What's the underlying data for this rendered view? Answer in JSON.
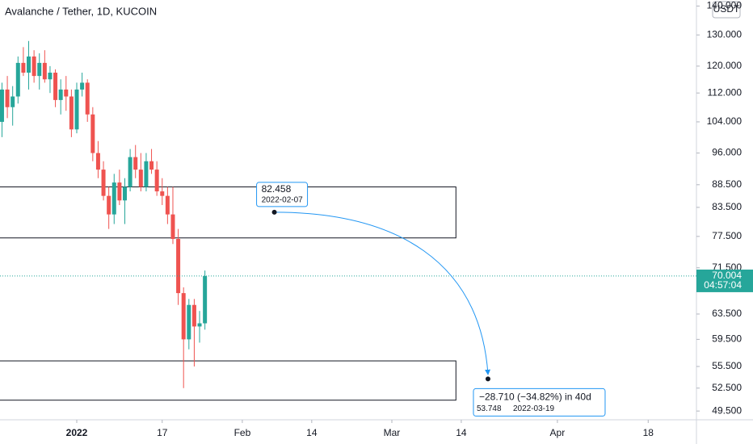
{
  "chart_data": {
    "type": "candlestick",
    "title": "Avalanche / Tether, 1D, KUCOIN",
    "currency": "USDT",
    "log_scale": true,
    "up_color": "#26a69a",
    "down_color": "#ef5350",
    "x": [
      "2021-12-18",
      "2021-12-19",
      "2021-12-20",
      "2021-12-21",
      "2021-12-22",
      "2021-12-23",
      "2021-12-24",
      "2021-12-25",
      "2021-12-26",
      "2021-12-27",
      "2021-12-28",
      "2021-12-29",
      "2021-12-30",
      "2021-12-31",
      "2022-01-01",
      "2022-01-02",
      "2022-01-03",
      "2022-01-04",
      "2022-01-05",
      "2022-01-06",
      "2022-01-07",
      "2022-01-08",
      "2022-01-09",
      "2022-01-10",
      "2022-01-11",
      "2022-01-12",
      "2022-01-13",
      "2022-01-14",
      "2022-01-15",
      "2022-01-16",
      "2022-01-17",
      "2022-01-18",
      "2022-01-19",
      "2022-01-20",
      "2022-01-21",
      "2022-01-22",
      "2022-01-23",
      "2022-01-24",
      "2022-01-25"
    ],
    "open": [
      104,
      113,
      108,
      111,
      121,
      118,
      123,
      117,
      121,
      116,
      118,
      110,
      113,
      111,
      102,
      113,
      115,
      106,
      96,
      92,
      86,
      82,
      89,
      85,
      88,
      95,
      92,
      88,
      94,
      92,
      87,
      86,
      82,
      77,
      67,
      59.5,
      65,
      61.5,
      62
    ],
    "high": [
      115,
      117,
      114,
      123,
      126,
      128,
      125,
      124,
      125,
      120,
      119,
      116,
      117,
      113,
      115,
      118,
      116,
      108,
      99,
      94,
      88,
      91,
      92,
      90,
      97,
      98,
      96,
      96,
      97,
      94,
      90,
      88,
      88,
      79,
      68,
      66,
      66,
      64,
      71
    ],
    "low": [
      100,
      105,
      103,
      109,
      117,
      113,
      115,
      113,
      115,
      112,
      108,
      106,
      107,
      100,
      101,
      111,
      104,
      94,
      90,
      85,
      79,
      80,
      84,
      80,
      87,
      90,
      87,
      87,
      91,
      86,
      84,
      80,
      76,
      65,
      52.5,
      58,
      55.5,
      59,
      61
    ],
    "close": [
      113,
      108,
      111,
      121,
      118,
      123,
      117,
      121,
      116,
      118,
      110,
      113,
      111,
      102,
      113,
      115,
      106,
      96,
      92,
      86,
      82,
      89,
      85,
      88,
      95,
      92,
      88,
      94,
      92,
      87,
      86,
      82,
      77,
      67,
      59.5,
      65,
      61.5,
      62,
      70.004
    ],
    "countdown": "04:57:04",
    "ylim": [
      48.4,
      142.2
    ],
    "yticks": [
      {
        "value": 140,
        "label": "140.000"
      },
      {
        "value": 130,
        "label": "130.000"
      },
      {
        "value": 120,
        "label": "120.000"
      },
      {
        "value": 112,
        "label": "112.000"
      },
      {
        "value": 104,
        "label": "104.000"
      },
      {
        "value": 96,
        "label": "96.000"
      },
      {
        "value": 88.5,
        "label": "88.500"
      },
      {
        "value": 83.5,
        "label": "83.500"
      },
      {
        "value": 77.5,
        "label": "77.500"
      },
      {
        "value": 71.5,
        "label": "71.500"
      },
      {
        "value": 63.5,
        "label": "63.500"
      },
      {
        "value": 59.5,
        "label": "59.500"
      },
      {
        "value": 55.5,
        "label": "55.500"
      },
      {
        "value": 52.5,
        "label": "52.500"
      },
      {
        "value": 49.5,
        "label": "49.500"
      }
    ],
    "xticks": [
      {
        "value": "2022-01-01",
        "label": "2022"
      },
      {
        "value": "2022-01-17",
        "label": "17"
      },
      {
        "value": "2022-02-01",
        "label": "Feb"
      },
      {
        "value": "2022-02-14",
        "label": "14"
      },
      {
        "value": "2022-03-01",
        "label": "Mar"
      },
      {
        "value": "2022-03-14",
        "label": "14"
      },
      {
        "value": "2022-04-01",
        "label": "Apr"
      },
      {
        "value": "2022-04-18",
        "label": "18"
      }
    ],
    "zones": [
      {
        "top": 88,
        "bottom": 77.2,
        "end": "2022-03-13"
      },
      {
        "top": 56.3,
        "bottom": 50.9,
        "end": "2022-03-13"
      }
    ],
    "measure": {
      "from": {
        "date": "2022-02-07",
        "price": 82.458
      },
      "to": {
        "date": "2022-03-19",
        "price": 53.748
      },
      "change_label": "−28.710 (−34.82%) in 40d"
    }
  }
}
